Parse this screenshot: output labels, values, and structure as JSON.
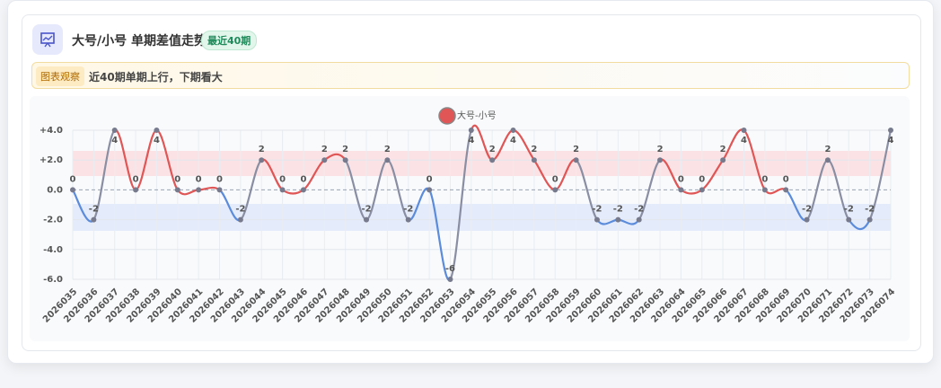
{
  "header": {
    "title": "大号/小号 单期差值走势",
    "badge": "最近40期"
  },
  "insight": {
    "tag": "图表观察",
    "text": "近40期单期上行，下期看大"
  },
  "chart_data": {
    "type": "line",
    "categories": [
      "2026035",
      "2026036",
      "2026037",
      "2026038",
      "2026039",
      "2026040",
      "2026041",
      "2026042",
      "2026043",
      "2026044",
      "2026045",
      "2026046",
      "2026047",
      "2026048",
      "2026049",
      "2026050",
      "2026051",
      "2026052",
      "2026053",
      "2026054",
      "2026055",
      "2026056",
      "2026057",
      "2026058",
      "2026059",
      "2026060",
      "2026061",
      "2026062",
      "2026063",
      "2026064",
      "2026065",
      "2026066",
      "2026067",
      "2026068",
      "2026069",
      "2026070",
      "2026071",
      "2026072",
      "2026073",
      "2026074"
    ],
    "series": [
      {
        "name": "大号-小号",
        "color": "#e05555",
        "negative_color": "#5b8bdb",
        "neutral_color": "#8a8ea3",
        "values": [
          0,
          -2,
          4,
          0,
          4,
          0,
          0,
          0,
          -2,
          2,
          0,
          0,
          2,
          2,
          -2,
          2,
          -2,
          0,
          -6,
          4,
          2,
          4,
          2,
          0,
          2,
          -2,
          -2,
          -2,
          2,
          0,
          0,
          2,
          4,
          0,
          0,
          -2,
          2,
          -2,
          -2,
          4
        ]
      }
    ],
    "ylim": [
      -6,
      4
    ],
    "yticks": [
      {
        "value": 4,
        "label": "+4.0"
      },
      {
        "value": 2,
        "label": "+2.0"
      },
      {
        "value": 0,
        "label": "0.0"
      },
      {
        "value": -2,
        "label": "-2.0"
      },
      {
        "value": -4,
        "label": "-4.0"
      },
      {
        "value": -6,
        "label": "-6.0"
      }
    ],
    "grid": true
  }
}
